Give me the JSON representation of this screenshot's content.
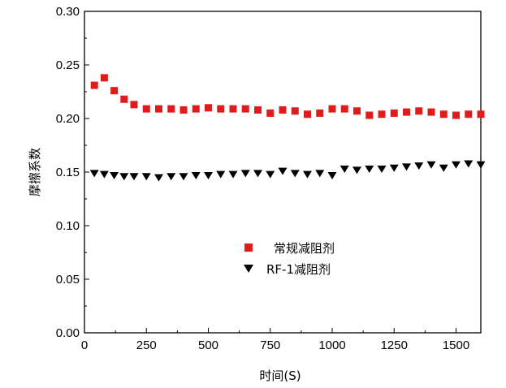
{
  "chart_data": {
    "type": "scatter",
    "title": "",
    "xlabel": "时间(S)",
    "ylabel": "摩擦系数",
    "xlim": [
      0,
      1600
    ],
    "ylim": [
      0,
      0.3
    ],
    "x_ticks": [
      0,
      250,
      500,
      750,
      1000,
      1250,
      1500
    ],
    "x_tick_labels": [
      "0",
      "250",
      "500",
      "750",
      "1000",
      "1250",
      "1500"
    ],
    "y_ticks": [
      0.0,
      0.05,
      0.1,
      0.15,
      0.2,
      0.25,
      0.3
    ],
    "y_tick_labels": [
      "0.00",
      "0.05",
      "0.10",
      "0.15",
      "0.20",
      "0.25",
      "0.30"
    ],
    "grid": false,
    "legend_position": "center",
    "series": [
      {
        "name": "常规减阻剂",
        "marker": "square",
        "color": "#e01b1b",
        "x": [
          40,
          80,
          120,
          160,
          200,
          250,
          300,
          350,
          400,
          450,
          500,
          550,
          600,
          650,
          700,
          750,
          800,
          850,
          900,
          950,
          1000,
          1050,
          1100,
          1150,
          1200,
          1250,
          1300,
          1350,
          1400,
          1450,
          1500,
          1550,
          1600
        ],
        "y": [
          0.231,
          0.238,
          0.226,
          0.218,
          0.213,
          0.209,
          0.209,
          0.209,
          0.208,
          0.209,
          0.21,
          0.209,
          0.209,
          0.209,
          0.208,
          0.205,
          0.208,
          0.207,
          0.204,
          0.205,
          0.209,
          0.209,
          0.207,
          0.203,
          0.204,
          0.205,
          0.206,
          0.207,
          0.206,
          0.204,
          0.203,
          0.204,
          0.204
        ]
      },
      {
        "name": "RF-1减阻剂",
        "marker": "triangle-down",
        "color": "#000000",
        "x": [
          40,
          80,
          120,
          160,
          200,
          250,
          300,
          350,
          400,
          450,
          500,
          550,
          600,
          650,
          700,
          750,
          800,
          850,
          900,
          950,
          1000,
          1050,
          1100,
          1150,
          1200,
          1250,
          1300,
          1350,
          1400,
          1450,
          1500,
          1550,
          1600
        ],
        "y": [
          0.149,
          0.148,
          0.147,
          0.146,
          0.146,
          0.146,
          0.145,
          0.146,
          0.146,
          0.147,
          0.147,
          0.148,
          0.148,
          0.149,
          0.149,
          0.148,
          0.151,
          0.149,
          0.148,
          0.149,
          0.147,
          0.153,
          0.152,
          0.153,
          0.153,
          0.154,
          0.155,
          0.156,
          0.157,
          0.154,
          0.157,
          0.158,
          0.157
        ]
      }
    ]
  }
}
